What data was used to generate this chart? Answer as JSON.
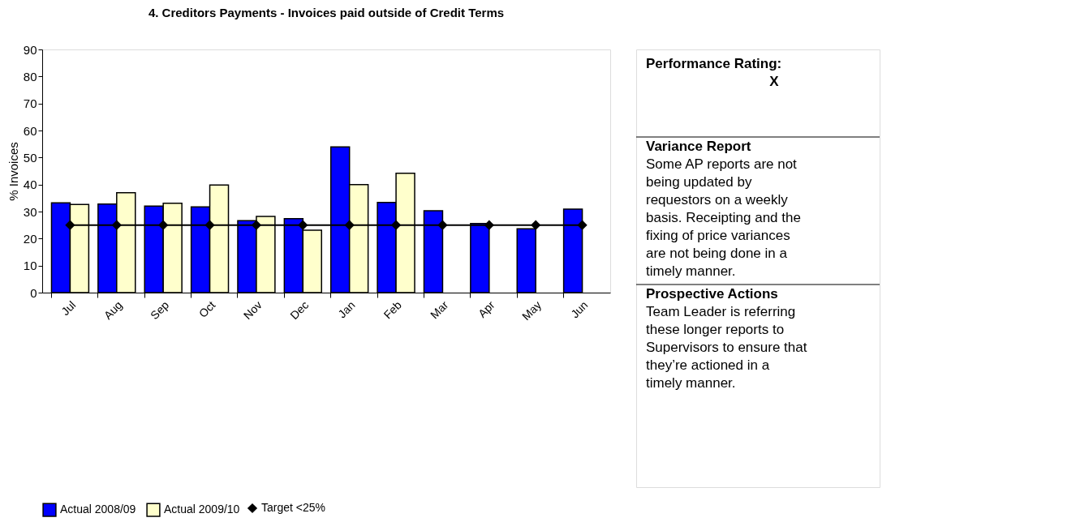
{
  "chart_data": [
    {
      "type": "bar",
      "title": "4. Creditors Payments - Invoices paid outside of Credit Terms",
      "ylabel": "% Invoices",
      "categories": [
        "Jul",
        "Aug",
        "Sep",
        "Oct",
        "Nov",
        "Dec",
        "Jan",
        "Feb",
        "Mar",
        "Apr",
        "May",
        "Jun"
      ],
      "series": [
        {
          "name": "Actual 2008/09",
          "color": "#0000ff",
          "values": [
            33.2,
            32.8,
            32,
            31.7,
            26.6,
            27.4,
            53.9,
            33.4,
            30.3,
            25.6,
            23.6,
            30.9
          ]
        },
        {
          "name": "Actual 2009/10",
          "color": "#ffffcc",
          "values": [
            32.6,
            37,
            33.1,
            39.8,
            28.2,
            23.1,
            40,
            44.2,
            null,
            null,
            null,
            null
          ]
        },
        {
          "name": "Target <25%",
          "type": "line",
          "color": "#000000",
          "marker": "diamond",
          "values": [
            25,
            25,
            25,
            25,
            25,
            25,
            25,
            25,
            25,
            25,
            25,
            25
          ]
        }
      ],
      "ylim": [
        0,
        90
      ],
      "yticks": [
        0,
        10,
        20,
        30,
        40,
        50,
        60,
        70,
        80,
        90
      ],
      "grid": false,
      "legend": "bottom"
    },
    {
      "type": "other",
      "annotations": [
        "Performance Rating:",
        "X",
        "Variance Report",
        "Some AP reports are not being updated by requestors on a weekly basis.  Receipting and the fixing of price variances are not being done in a timely manner.",
        "Prospective Actions",
        "Team Leader is referring these longer reports to Supervisors to ensure that they’re actioned in a timely manner."
      ]
    }
  ]
}
